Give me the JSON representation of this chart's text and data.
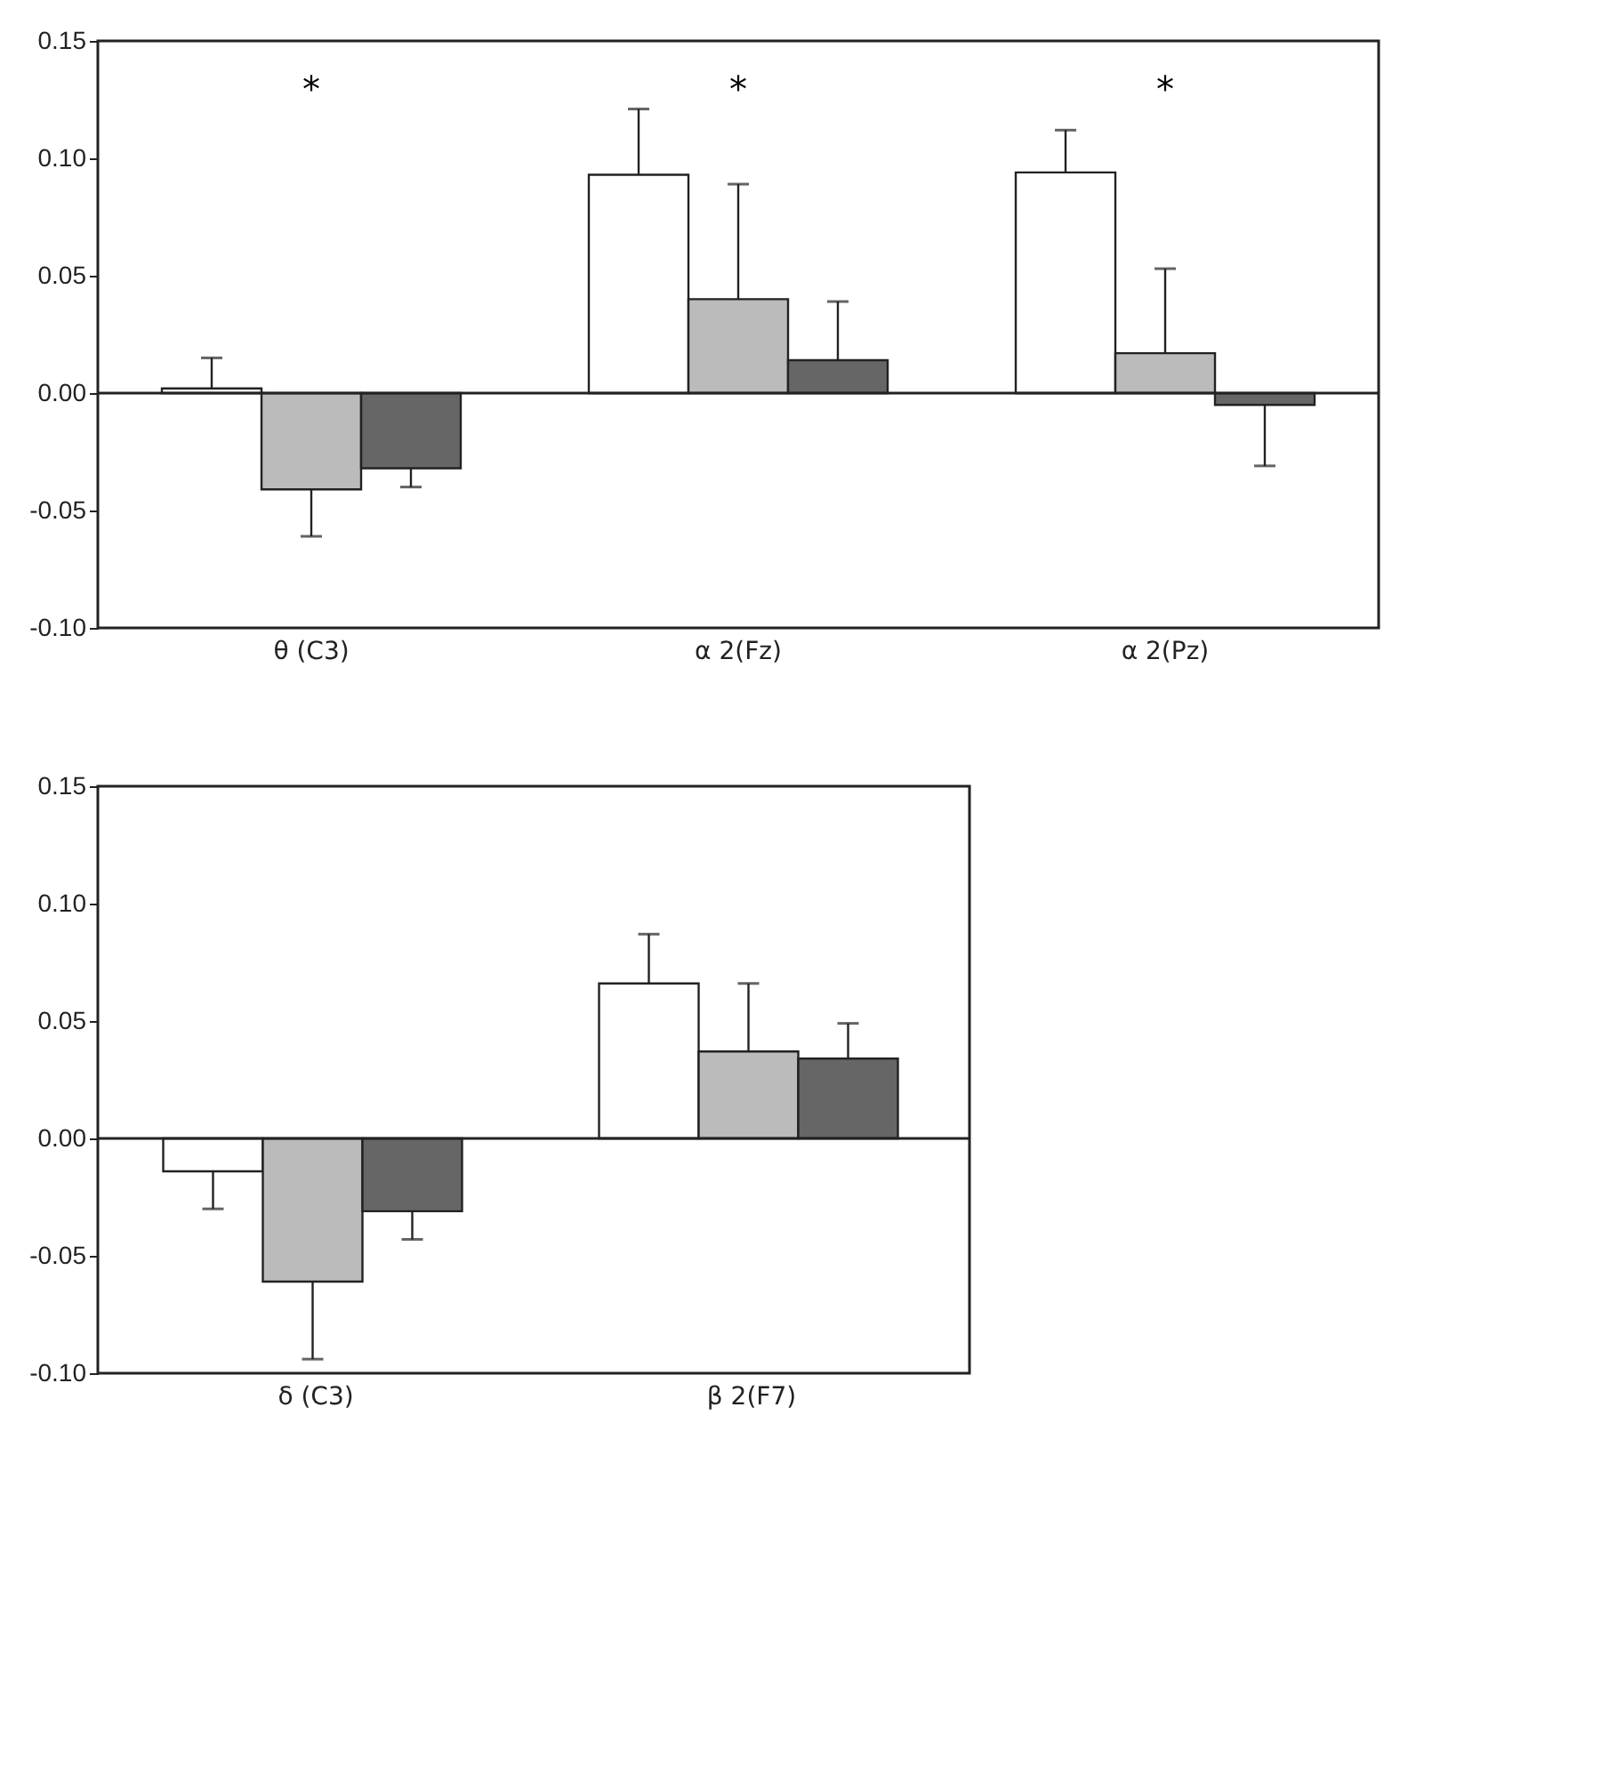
{
  "chart_data": [
    {
      "type": "bar",
      "categories": [
        "θ (C3)",
        "α 2(Fz)",
        "α 2(Pz)"
      ],
      "ylim": [
        -0.1,
        0.15
      ],
      "yticks": [
        0.15,
        {
          "value": 0.1,
          "label": "0.10"
        },
        {
          "value": 0.05,
          "label": "0.05"
        },
        {
          "value": 0,
          "label": "0.00"
        },
        -0.05,
        {
          "value": -0.1,
          "label": "-0.10"
        }
      ],
      "grid": false,
      "series": [
        {
          "color": "#ffffff",
          "values": [
            0.002,
            0.093,
            0.094
          ],
          "errors": [
            [
              0.002,
              0.015
            ],
            [
              0.093,
              0.121
            ],
            [
              0.094,
              0.112
            ]
          ]
        },
        {
          "color": "#bbbbbb",
          "values": [
            -0.041,
            0.04,
            0.017
          ],
          "errors": [
            [
              -0.061,
              -0.041
            ],
            [
              0.04,
              0.089
            ],
            [
              0.017,
              0.053
            ]
          ]
        },
        {
          "color": "#666666",
          "values": [
            -0.032,
            0.014,
            -0.005
          ],
          "errors": [
            [
              -0.04,
              -0.032
            ],
            [
              0.014,
              0.039
            ],
            [
              -0.031,
              -0.005
            ]
          ]
        }
      ],
      "ref_lines": [
        {
          "axis": "y",
          "value": 0
        }
      ],
      "annotations": [
        "*",
        "*",
        "*"
      ]
    },
    {
      "type": "bar",
      "categories": [
        "δ (C3)",
        "β 2(F7)"
      ],
      "ylim": [
        -0.1,
        0.15
      ],
      "yticks": [
        0.15,
        {
          "value": 0.1,
          "label": "0.10"
        },
        {
          "value": 0.05,
          "label": "0.05"
        },
        {
          "value": 0,
          "label": "0.00"
        },
        -0.05,
        {
          "value": -0.1,
          "label": "-0.10"
        }
      ],
      "grid": false,
      "series": [
        {
          "color": "#ffffff",
          "values": [
            -0.014,
            0.066
          ],
          "errors": [
            [
              -0.03,
              -0.014
            ],
            [
              0.066,
              0.087
            ]
          ]
        },
        {
          "color": "#bbbbbb",
          "values": [
            -0.061,
            0.037
          ],
          "errors": [
            [
              -0.094,
              -0.061
            ],
            [
              0.037,
              0.066
            ]
          ]
        },
        {
          "color": "#666666",
          "values": [
            -0.031,
            0.034
          ],
          "errors": [
            [
              -0.043,
              -0.031
            ],
            [
              0.034,
              0.049
            ]
          ]
        }
      ],
      "ref_lines": [
        {
          "axis": "y",
          "value": 0
        }
      ]
    }
  ]
}
